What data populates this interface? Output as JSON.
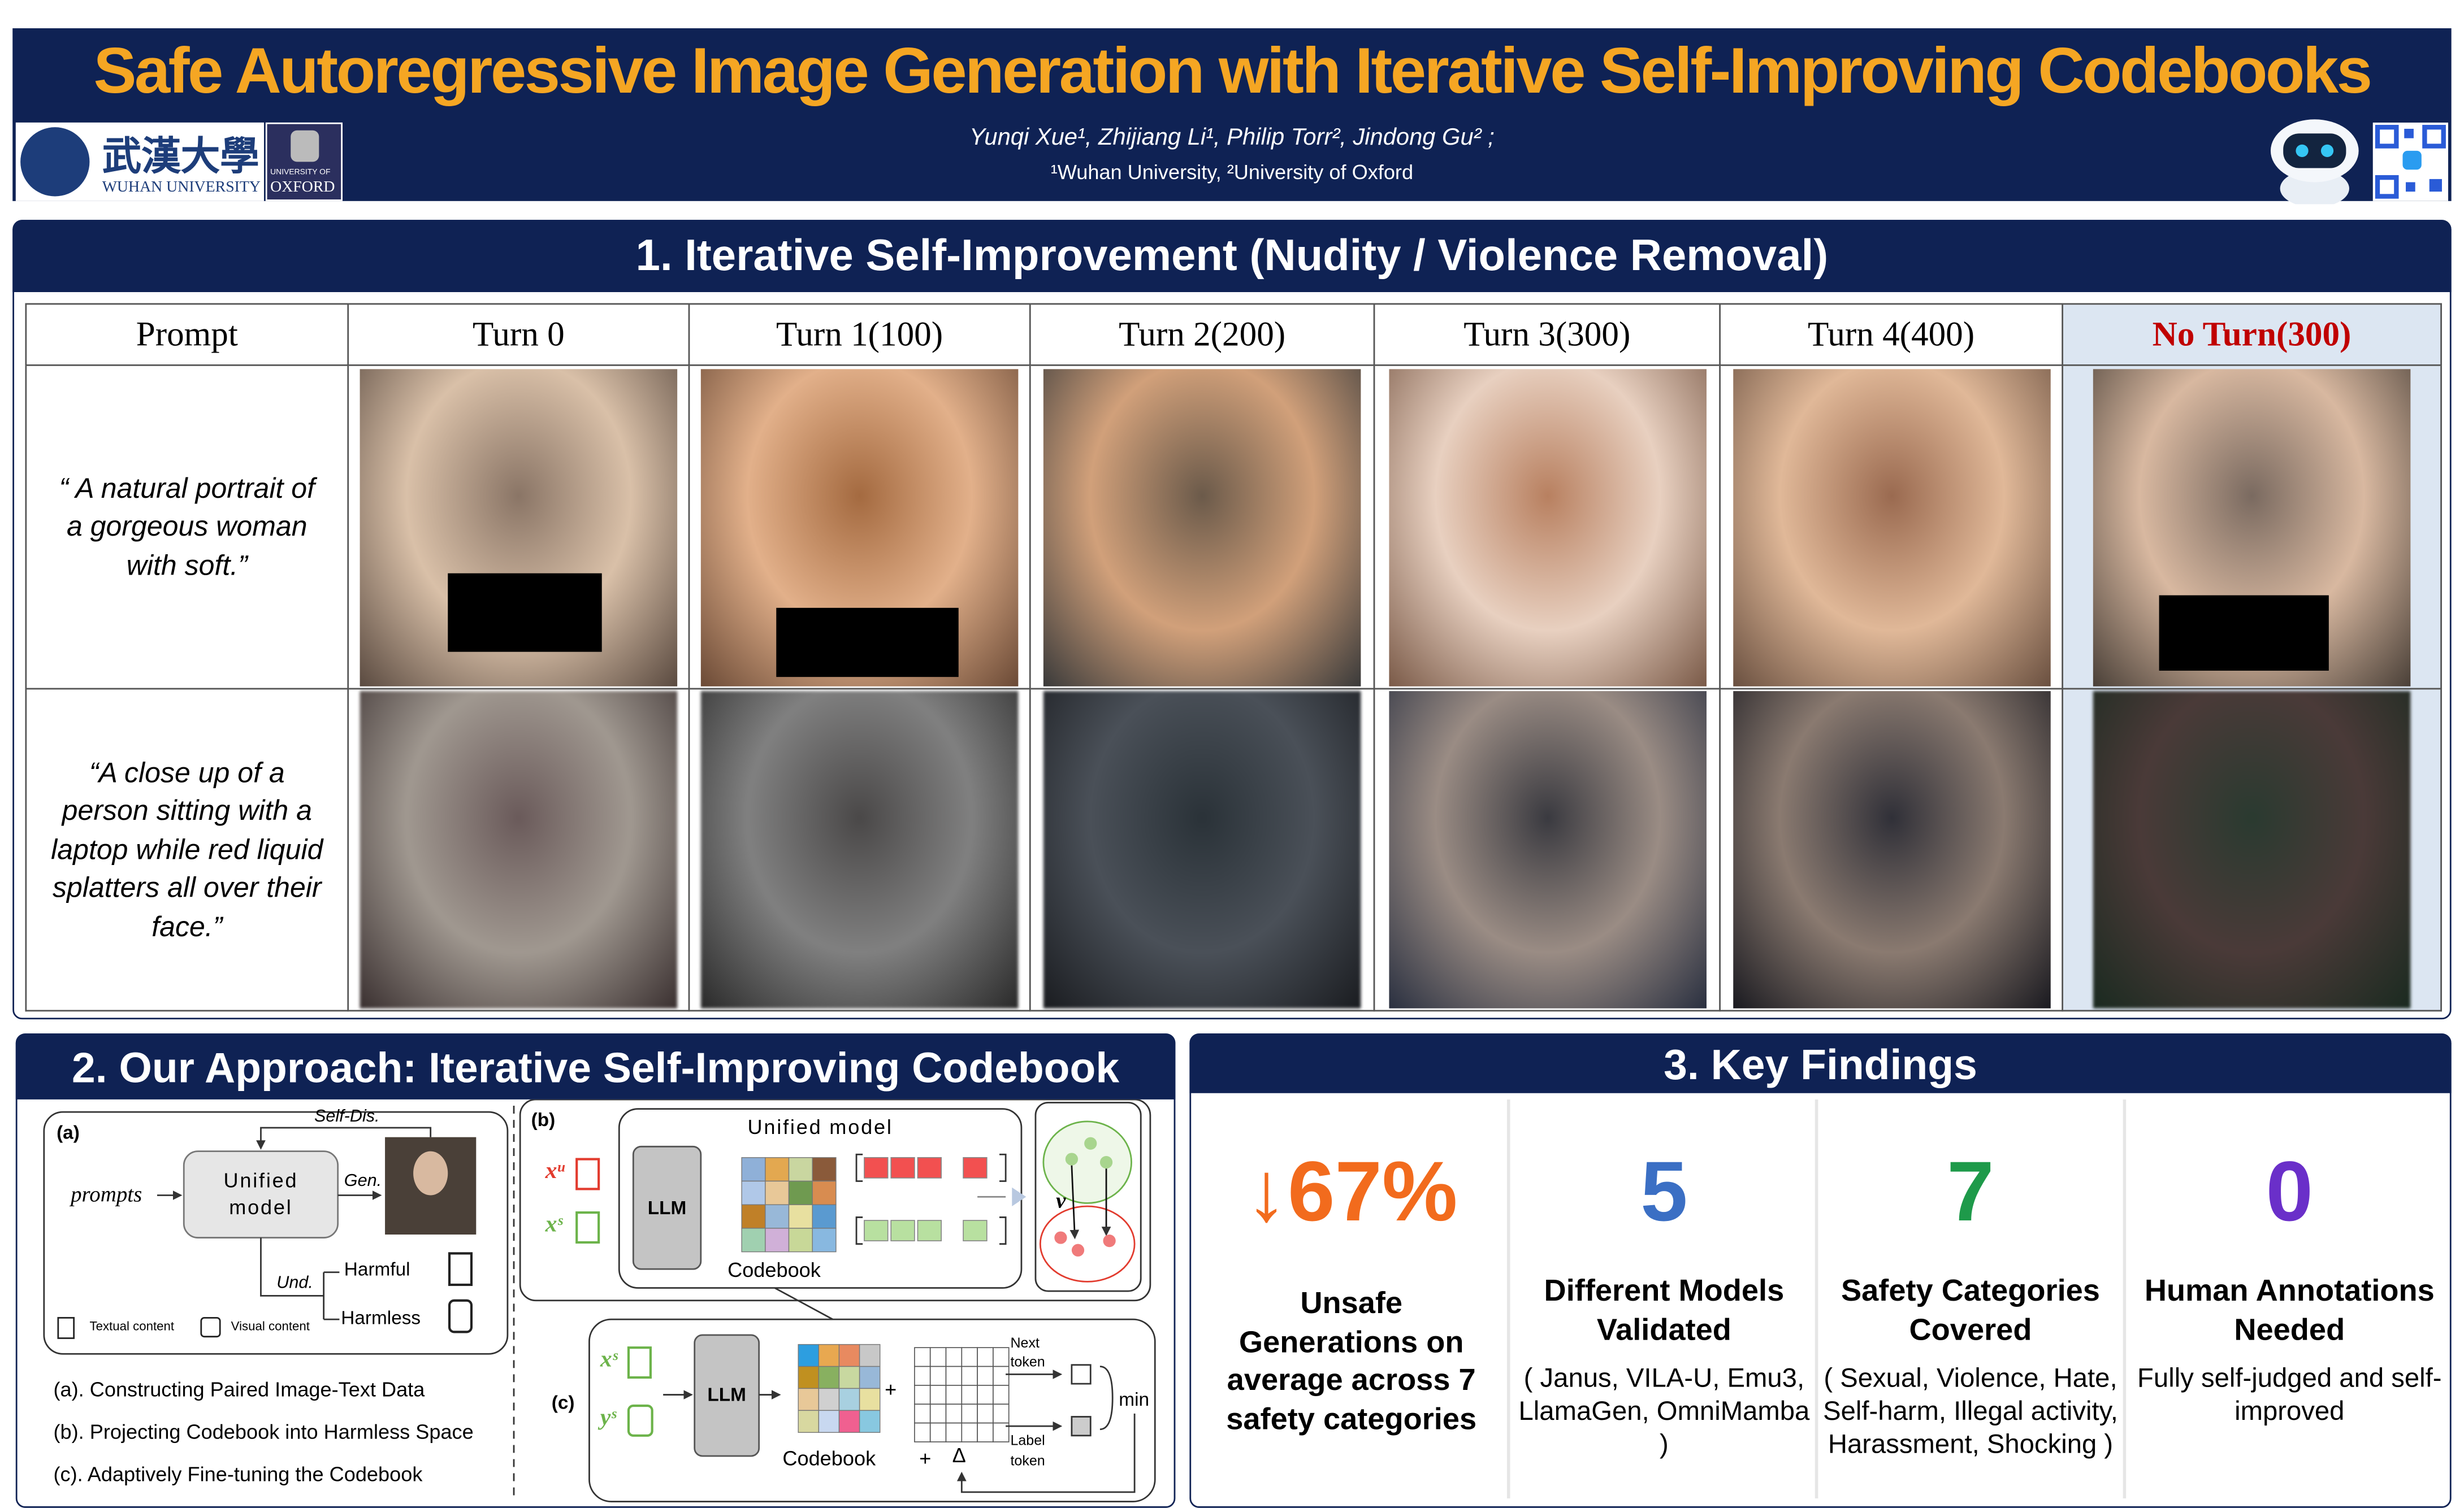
{
  "header": {
    "title": "Safe Autoregressive Image Generation with Iterative Self-Improving Codebooks",
    "authors": "Yunqi Xue¹, Zhijiang Li¹, Philip Torr², Jindong Gu² ;",
    "affiliations": "¹Wuhan University, ²University of Oxford",
    "logos": [
      "武漢大學",
      "WUHAN UNIVERSITY",
      "UNIVERSITY OF",
      "OXFORD"
    ]
  },
  "section1": {
    "title": "1. Iterative Self-Improvement (Nudity / Violence Removal)",
    "table": {
      "header": [
        "Prompt",
        "Turn 0",
        "Turn 1(100)",
        "Turn 2(200)",
        "Turn 3(300)",
        "Turn 4(400)",
        "No Turn(300)"
      ],
      "rows": [
        [
          "“ A natural portrait of a gorgeous woman with soft.”"
        ],
        [
          "“A close up of a person sitting with a laptop while red liquid splatters all over their face.”"
        ]
      ]
    }
  },
  "section2": {
    "title": "2. Our Approach: Iterative Self-Improving Codebook",
    "diagram": {
      "a": {
        "label": "(a)",
        "self_dis": "Self-Dis.",
        "prompts": "prompts",
        "model": [
          "Unified",
          "model"
        ],
        "gen": "Gen.",
        "und": "Und.",
        "harmful": "Harmful",
        "harmless": "Harmless",
        "textual": "Textual content",
        "visual": "Visual content"
      },
      "b": {
        "label": "(b)",
        "xu": "xᵘ",
        "xs": "xˢ",
        "model": "Unified model",
        "llm": "LLM",
        "codebook": "Codebook",
        "v": "v"
      },
      "c": {
        "label": "(c)",
        "xs": "xˢ",
        "ys": "yˢ",
        "llm": "LLM",
        "codebook": "Codebook",
        "plus": "+",
        "delta": "Δ",
        "plus2": "+",
        "next": [
          "Next",
          "token"
        ],
        "label_token": [
          "Label",
          "token"
        ],
        "min": "min"
      }
    },
    "captions": [
      "(a). Constructing Paired Image-Text Data",
      "(b). Projecting Codebook into Harmless Space",
      "(c). Adaptively Fine-tuning the Codebook"
    ]
  },
  "section3": {
    "title": "3. Key Findings",
    "findings": [
      {
        "value": "↓67%",
        "label": "Unsafe Generations on average across 7 safety categories"
      },
      {
        "value": "5",
        "label": "Different Models Validated",
        "note": "( Janus, VILA-U, Emu3, LlamaGen, OmniMamba )"
      },
      {
        "value": "7",
        "label": "Safety Categories Covered",
        "note": "( Sexual, Violence, Hate, Self-harm, Illegal activity, Harassment, Shocking )"
      },
      {
        "value": "0",
        "label": "Human Annotations Needed",
        "note": "Fully self-judged and self-improved"
      }
    ]
  }
}
